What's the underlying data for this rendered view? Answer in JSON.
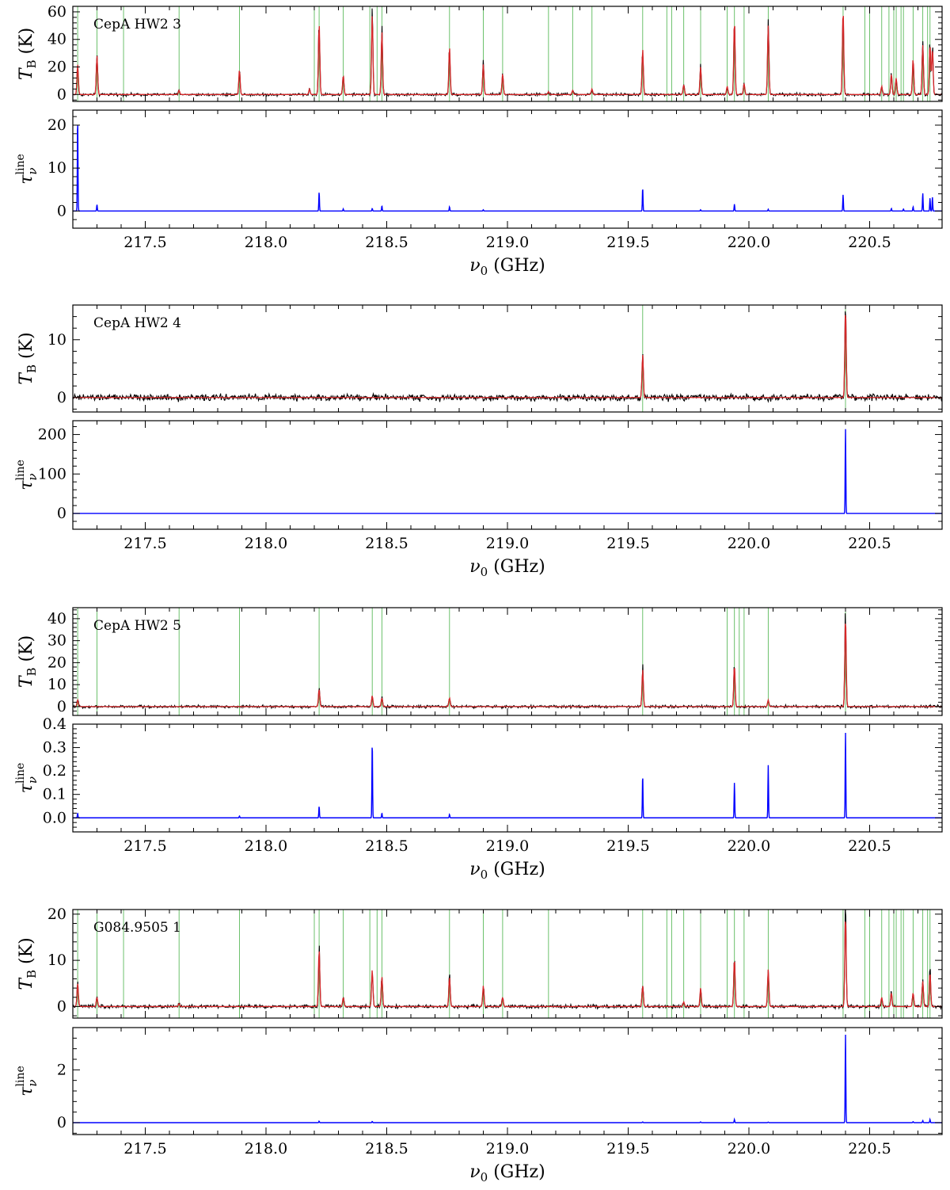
{
  "chart_data": [
    {
      "type": "line",
      "source": "CepA HW2 3",
      "x": {
        "label": "ν0 (GHz)",
        "range": [
          217.2,
          220.8
        ],
        "ticks": [
          217.5,
          218.0,
          218.5,
          219.0,
          219.5,
          220.0,
          220.5
        ],
        "tick_labels": [
          "217.5",
          "218.0",
          "218.5",
          "219.0",
          "219.5",
          "220.0",
          "220.5"
        ]
      },
      "top_panel": {
        "ylabel": "TB (K)",
        "ylim": [
          -5,
          64
        ],
        "yticks": [
          0,
          20,
          40,
          60
        ],
        "ytick_labels": [
          "0",
          "20",
          "40",
          "60"
        ],
        "noise": 0.8,
        "series": [
          {
            "color": "#000000",
            "role": "observed spectrum"
          },
          {
            "color": "#d62728",
            "role": "model spectrum"
          }
        ],
        "line_markers": [
          217.22,
          217.3,
          217.41,
          217.64,
          217.89,
          218.2,
          218.22,
          218.32,
          218.43,
          218.46,
          218.48,
          218.76,
          218.9,
          218.98,
          219.17,
          219.27,
          219.35,
          219.56,
          219.66,
          219.68,
          219.73,
          219.8,
          219.91,
          219.94,
          219.98,
          220.08,
          220.39,
          220.48,
          220.5,
          220.55,
          220.58,
          220.6,
          220.61,
          220.63,
          220.64,
          220.68,
          220.72,
          220.74,
          220.75
        ],
        "peaks": [
          [
            217.22,
            22
          ],
          [
            217.3,
            28
          ],
          [
            217.64,
            3
          ],
          [
            217.89,
            18
          ],
          [
            218.18,
            4
          ],
          [
            218.22,
            52
          ],
          [
            218.32,
            14
          ],
          [
            218.44,
            58
          ],
          [
            218.48,
            46
          ],
          [
            218.76,
            35
          ],
          [
            218.9,
            22
          ],
          [
            218.98,
            15
          ],
          [
            219.17,
            2
          ],
          [
            219.27,
            3
          ],
          [
            219.35,
            4
          ],
          [
            219.56,
            33
          ],
          [
            219.73,
            7
          ],
          [
            219.8,
            20
          ],
          [
            219.91,
            6
          ],
          [
            219.94,
            54
          ],
          [
            219.98,
            8
          ],
          [
            220.08,
            50
          ],
          [
            220.39,
            62
          ],
          [
            220.55,
            6
          ],
          [
            220.59,
            15
          ],
          [
            220.61,
            12
          ],
          [
            220.68,
            26
          ],
          [
            220.72,
            36
          ],
          [
            220.75,
            37
          ],
          [
            220.76,
            34
          ]
        ]
      },
      "bottom_panel": {
        "ylabel": "τν line",
        "ylim": [
          -4,
          23.5
        ],
        "yticks": [
          0,
          10,
          20
        ],
        "ytick_labels": [
          "0",
          "10",
          "20"
        ],
        "series": [
          {
            "color": "#0000ff",
            "role": "line optical depth"
          }
        ],
        "peaks": [
          [
            217.22,
            22
          ],
          [
            217.3,
            1.5
          ],
          [
            218.22,
            4.5
          ],
          [
            218.32,
            0.5
          ],
          [
            218.44,
            0.6
          ],
          [
            218.48,
            1.2
          ],
          [
            218.76,
            1.0
          ],
          [
            218.9,
            0.3
          ],
          [
            219.56,
            5.5
          ],
          [
            219.8,
            0.3
          ],
          [
            219.94,
            1.6
          ],
          [
            220.08,
            0.4
          ],
          [
            220.39,
            3.8
          ],
          [
            220.59,
            0.6
          ],
          [
            220.64,
            0.5
          ],
          [
            220.68,
            1.0
          ],
          [
            220.72,
            4.2
          ],
          [
            220.75,
            3.0
          ],
          [
            220.76,
            3.2
          ]
        ]
      }
    },
    {
      "type": "line",
      "source": "CepA HW2 4",
      "x": {
        "label": "ν0 (GHz)",
        "range": [
          217.2,
          220.8
        ],
        "ticks": [
          217.5,
          218.0,
          218.5,
          219.0,
          219.5,
          220.0,
          220.5
        ],
        "tick_labels": [
          "217.5",
          "218.0",
          "218.5",
          "219.0",
          "219.5",
          "220.0",
          "220.5"
        ]
      },
      "top_panel": {
        "ylabel": "TB (K)",
        "ylim": [
          -2.5,
          16
        ],
        "yticks": [
          0,
          10
        ],
        "ytick_labels": [
          "0",
          "10"
        ],
        "noise": 0.45,
        "series": [
          {
            "color": "#000000",
            "role": "observed spectrum"
          },
          {
            "color": "#d62728",
            "role": "model spectrum"
          }
        ],
        "line_markers": [
          219.56,
          220.4
        ],
        "peaks": [
          [
            219.56,
            7.5
          ],
          [
            220.4,
            15.5
          ]
        ]
      },
      "bottom_panel": {
        "ylabel": "τν line",
        "ylim": [
          -40,
          235
        ],
        "yticks": [
          0,
          100,
          200
        ],
        "ytick_labels": [
          "0",
          "100",
          "200"
        ],
        "series": [
          {
            "color": "#0000ff",
            "role": "line optical depth"
          }
        ],
        "peaks": [
          [
            220.4,
            215
          ]
        ]
      }
    },
    {
      "type": "line",
      "source": "CepA HW2 5",
      "x": {
        "label": "ν0 (GHz)",
        "range": [
          217.2,
          220.8
        ],
        "ticks": [
          217.5,
          218.0,
          218.5,
          219.0,
          219.5,
          220.0,
          220.5
        ],
        "tick_labels": [
          "217.5",
          "218.0",
          "218.5",
          "219.0",
          "219.5",
          "220.0",
          "220.5"
        ]
      },
      "top_panel": {
        "ylabel": "TB (K)",
        "ylim": [
          -4,
          45
        ],
        "yticks": [
          0,
          10,
          20,
          30,
          40
        ],
        "ytick_labels": [
          "0",
          "10",
          "20",
          "30",
          "40"
        ],
        "noise": 0.5,
        "series": [
          {
            "color": "#000000",
            "role": "observed spectrum"
          },
          {
            "color": "#d62728",
            "role": "model spectrum"
          }
        ],
        "line_markers": [
          217.22,
          217.3,
          217.64,
          217.89,
          218.22,
          218.44,
          218.48,
          218.76,
          219.56,
          219.91,
          219.94,
          219.96,
          219.98,
          220.08,
          220.4
        ],
        "peaks": [
          [
            217.22,
            3
          ],
          [
            218.22,
            8
          ],
          [
            218.44,
            5
          ],
          [
            218.48,
            4
          ],
          [
            218.76,
            4
          ],
          [
            219.56,
            17
          ],
          [
            219.94,
            19
          ],
          [
            220.08,
            3
          ],
          [
            220.4,
            41
          ]
        ]
      },
      "bottom_panel": {
        "ylabel": "τν line",
        "ylim": [
          -0.06,
          0.4
        ],
        "yticks": [
          0.0,
          0.1,
          0.2,
          0.3,
          0.4
        ],
        "ytick_labels": [
          "0.0",
          "0.1",
          "0.2",
          "0.3",
          "0.4"
        ],
        "series": [
          {
            "color": "#0000ff",
            "role": "line optical depth"
          }
        ],
        "peaks": [
          [
            217.22,
            0.02
          ],
          [
            217.89,
            0.008
          ],
          [
            218.22,
            0.05
          ],
          [
            218.44,
            0.33
          ],
          [
            218.48,
            0.02
          ],
          [
            218.76,
            0.015
          ],
          [
            219.56,
            0.185
          ],
          [
            219.94,
            0.15
          ],
          [
            220.08,
            0.225
          ],
          [
            220.4,
            0.365
          ]
        ]
      }
    },
    {
      "type": "line",
      "source": "G084.9505 1",
      "x": {
        "label": "ν0 (GHz)",
        "range": [
          217.2,
          220.8
        ],
        "ticks": [
          217.5,
          218.0,
          218.5,
          219.0,
          219.5,
          220.0,
          220.5
        ],
        "tick_labels": [
          "217.5",
          "218.0",
          "218.5",
          "219.0",
          "219.5",
          "220.0",
          "220.5"
        ]
      },
      "top_panel": {
        "ylabel": "TB (K)",
        "ylim": [
          -2.5,
          21
        ],
        "yticks": [
          0,
          10,
          20
        ],
        "ytick_labels": [
          "0",
          "10",
          "20"
        ],
        "noise": 0.3,
        "series": [
          {
            "color": "#000000",
            "role": "observed spectrum"
          },
          {
            "color": "#d62728",
            "role": "model spectrum"
          }
        ],
        "line_markers": [
          217.22,
          217.3,
          217.41,
          217.64,
          217.89,
          218.2,
          218.22,
          218.32,
          218.43,
          218.46,
          218.48,
          218.76,
          218.9,
          218.98,
          219.17,
          219.56,
          219.66,
          219.68,
          219.73,
          219.8,
          219.91,
          219.94,
          219.98,
          220.08,
          220.39,
          220.48,
          220.5,
          220.55,
          220.58,
          220.6,
          220.61,
          220.63,
          220.64,
          220.68,
          220.72,
          220.74,
          220.75
        ],
        "peaks": [
          [
            217.22,
            5
          ],
          [
            217.3,
            2
          ],
          [
            217.64,
            0.6
          ],
          [
            218.22,
            12.5
          ],
          [
            218.32,
            2
          ],
          [
            218.44,
            8
          ],
          [
            218.48,
            6.5
          ],
          [
            218.76,
            6.5
          ],
          [
            218.9,
            4.5
          ],
          [
            218.98,
            2
          ],
          [
            219.56,
            4.5
          ],
          [
            219.73,
            1
          ],
          [
            219.8,
            4
          ],
          [
            219.94,
            10.5
          ],
          [
            220.08,
            8
          ],
          [
            220.4,
            20
          ],
          [
            220.55,
            2
          ],
          [
            220.59,
            3
          ],
          [
            220.68,
            3
          ],
          [
            220.72,
            5.5
          ],
          [
            220.75,
            7.5
          ]
        ]
      },
      "bottom_panel": {
        "ylabel": "τν line",
        "ylim": [
          -0.45,
          3.6
        ],
        "yticks": [
          0,
          2
        ],
        "ytick_labels": [
          "0",
          "2"
        ],
        "series": [
          {
            "color": "#0000ff",
            "role": "line optical depth"
          }
        ],
        "peaks": [
          [
            218.22,
            0.06
          ],
          [
            218.44,
            0.05
          ],
          [
            219.56,
            0.03
          ],
          [
            219.8,
            0.03
          ],
          [
            219.94,
            0.12
          ],
          [
            220.08,
            0.02
          ],
          [
            220.4,
            3.35
          ],
          [
            220.68,
            0.04
          ],
          [
            220.72,
            0.08
          ],
          [
            220.75,
            0.12
          ]
        ]
      }
    }
  ]
}
